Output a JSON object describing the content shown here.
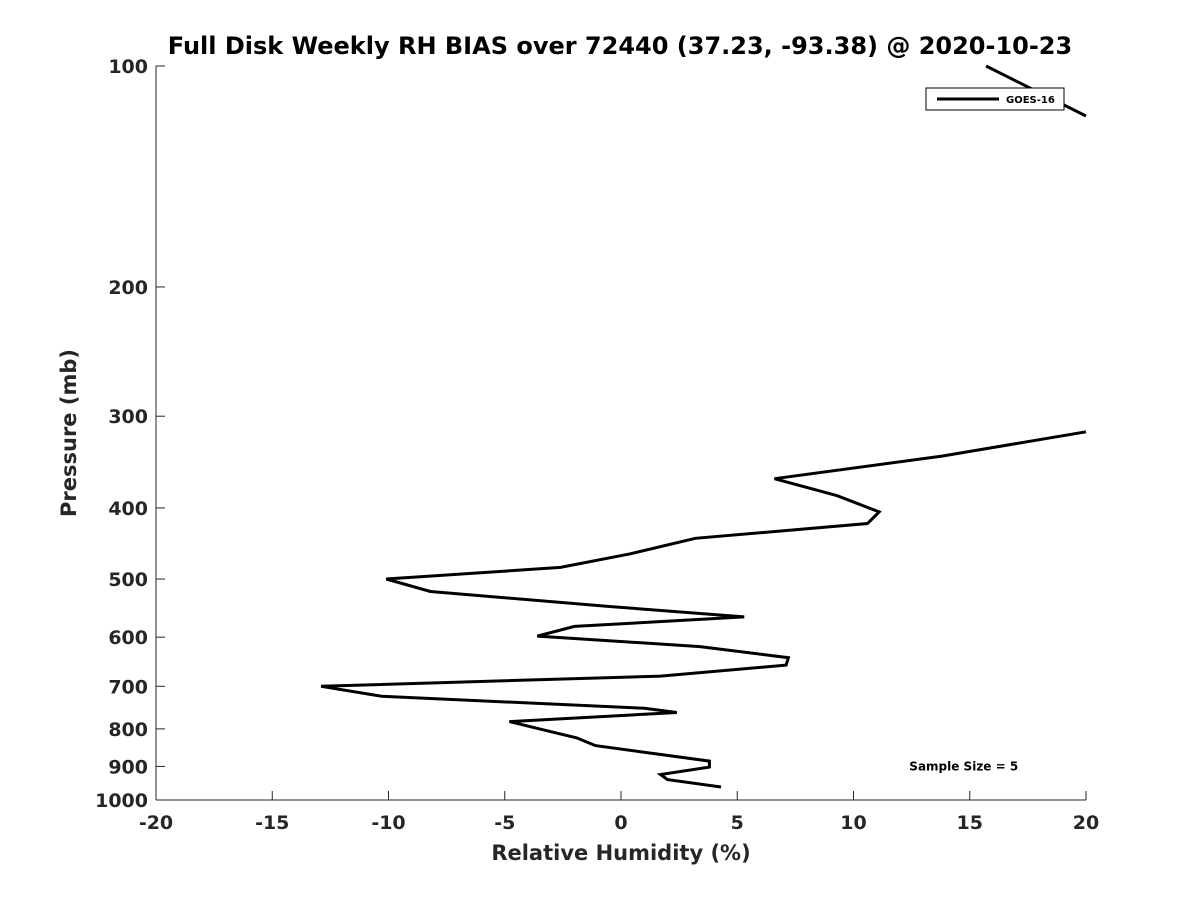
{
  "chart_data": {
    "type": "line",
    "title": "Full Disk Weekly RH BIAS over 72440 (37.23, -93.38) @ 2020-10-23",
    "xlabel": "Relative Humidity (%)",
    "ylabel": "Pressure (mb)",
    "xlim": [
      -20,
      20
    ],
    "ylim": [
      100,
      1000
    ],
    "yscale": "log",
    "y_reversed": true,
    "grid": false,
    "legend_position": "top-right",
    "x_ticks": [
      -20,
      -15,
      -10,
      -5,
      0,
      5,
      10,
      15,
      20
    ],
    "x_tick_labels": [
      "-20",
      "-15",
      "-10",
      "-5",
      "0",
      "5",
      "10",
      "15",
      "20"
    ],
    "y_ticks": [
      100,
      200,
      300,
      400,
      500,
      600,
      700,
      800,
      900,
      1000
    ],
    "y_tick_labels": [
      "100",
      "200",
      "300",
      "400",
      "500",
      "600",
      "700",
      "800",
      "900",
      "1000"
    ],
    "series": [
      {
        "name": "GOES-16",
        "color": "#000000",
        "segments": [
          [
            {
              "x": 15.7,
              "y": 100
            },
            {
              "x": 20.0,
              "y": 117
            }
          ],
          [
            {
              "x": 20.0,
              "y": 315
            },
            {
              "x": 13.8,
              "y": 340
            },
            {
              "x": 6.6,
              "y": 365
            },
            {
              "x": 9.3,
              "y": 385
            },
            {
              "x": 11.1,
              "y": 405
            },
            {
              "x": 10.6,
              "y": 420
            },
            {
              "x": 3.2,
              "y": 440
            },
            {
              "x": 0.4,
              "y": 462
            },
            {
              "x": -2.6,
              "y": 482
            },
            {
              "x": -10.1,
              "y": 500
            },
            {
              "x": -8.2,
              "y": 520
            },
            {
              "x": -0.5,
              "y": 545
            },
            {
              "x": 5.3,
              "y": 563
            },
            {
              "x": -2.0,
              "y": 580
            },
            {
              "x": -3.6,
              "y": 598
            },
            {
              "x": 3.4,
              "y": 618
            },
            {
              "x": 7.2,
              "y": 640
            },
            {
              "x": 7.1,
              "y": 655
            },
            {
              "x": 1.7,
              "y": 678
            },
            {
              "x": -12.9,
              "y": 700
            },
            {
              "x": -10.3,
              "y": 722
            },
            {
              "x": 1.0,
              "y": 750
            },
            {
              "x": 2.4,
              "y": 760
            },
            {
              "x": -4.8,
              "y": 782
            },
            {
              "x": -3.5,
              "y": 800
            },
            {
              "x": -1.9,
              "y": 823
            },
            {
              "x": -1.1,
              "y": 843
            },
            {
              "x": 3.8,
              "y": 885
            },
            {
              "x": 3.8,
              "y": 902
            },
            {
              "x": 1.7,
              "y": 923
            },
            {
              "x": 2.0,
              "y": 938
            },
            {
              "x": 4.3,
              "y": 960
            }
          ]
        ]
      }
    ],
    "annotations": [
      {
        "text": "Sample Size = 5",
        "x": 12.4,
        "y": 900
      }
    ]
  }
}
